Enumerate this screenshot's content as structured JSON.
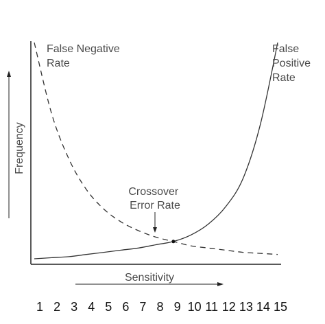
{
  "chart_data": {
    "type": "line",
    "xlabel": "Sensitivity",
    "ylabel": "Frequency",
    "x_ticks": [
      "1",
      "2",
      "3",
      "4",
      "5",
      "6",
      "7",
      "8",
      "9",
      "10",
      "11",
      "12",
      "13",
      "14",
      "15"
    ],
    "series": [
      {
        "name": "False Negative Rate",
        "name_lines": [
          "False Negative",
          "Rate"
        ],
        "style": "dashed",
        "points": [
          [
            1,
            100
          ],
          [
            2,
            67
          ],
          [
            3,
            46
          ],
          [
            4,
            32
          ],
          [
            5,
            23
          ],
          [
            6,
            17
          ],
          [
            7,
            13
          ],
          [
            8,
            10
          ],
          [
            9,
            8
          ],
          [
            10,
            6
          ],
          [
            11,
            5
          ],
          [
            12,
            4
          ],
          [
            13,
            3
          ],
          [
            14,
            2.5
          ],
          [
            15,
            2
          ]
        ]
      },
      {
        "name": "False Positive Rate",
        "name_lines": [
          "False",
          "Positive",
          "Rate"
        ],
        "style": "solid",
        "points": [
          [
            1,
            0
          ],
          [
            2,
            0.5
          ],
          [
            3,
            1
          ],
          [
            4,
            2
          ],
          [
            5,
            3
          ],
          [
            6,
            4
          ],
          [
            7,
            5
          ],
          [
            8,
            6.5
          ],
          [
            9,
            8
          ],
          [
            10,
            11
          ],
          [
            11,
            16
          ],
          [
            12,
            24
          ],
          [
            13,
            37
          ],
          [
            14,
            62
          ],
          [
            15,
            100
          ]
        ]
      }
    ],
    "annotations": [
      {
        "text_lines": [
          "Crossover",
          "Error Rate"
        ],
        "x": 9,
        "y": 8
      }
    ],
    "axis_color": "#222222",
    "line_color": "#333333"
  }
}
